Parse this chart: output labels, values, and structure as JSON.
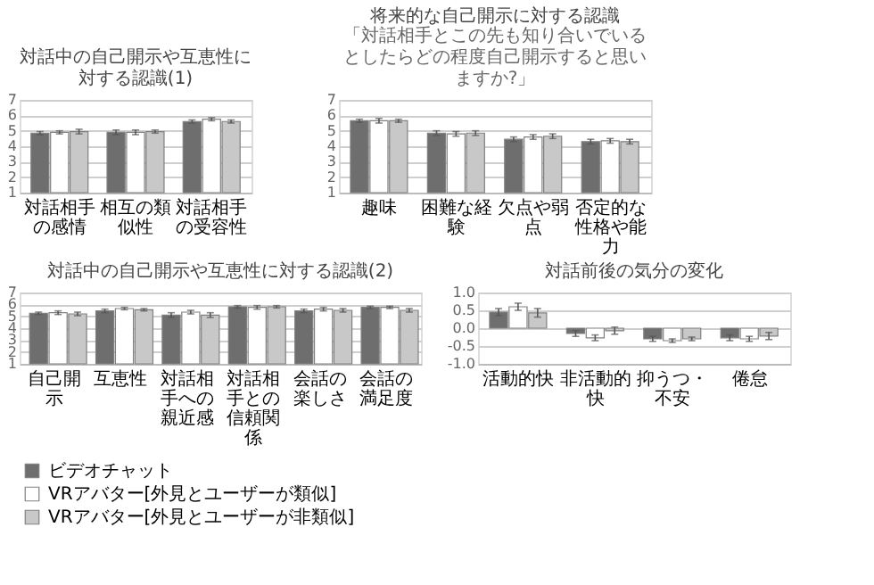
{
  "chart_data": [
    {
      "type": "bar",
      "title": "対話中の自己開示や互恵性に対する認識(1)",
      "categories": [
        "対話相手の感情",
        "相互の類似性",
        "対話相手の受容性"
      ],
      "series": [
        {
          "name": "ビデオチャット",
          "color": "#6e6e6e",
          "values": [
            4.85,
            4.9,
            5.6
          ],
          "errors": [
            0.1,
            0.15,
            0.1
          ]
        },
        {
          "name": "VRアバター[外見とユーザーが類似]",
          "color": "#ffffff",
          "values": [
            4.9,
            4.9,
            5.75
          ],
          "errors": [
            0.1,
            0.15,
            0.1
          ]
        },
        {
          "name": "VRアバター[外見とユーザーが非類似]",
          "color": "#c8c8c8",
          "values": [
            4.95,
            4.95,
            5.6
          ],
          "errors": [
            0.15,
            0.1,
            0.1
          ]
        }
      ],
      "ylim": [
        1,
        7
      ],
      "yticks": [
        1,
        2,
        3,
        4,
        5,
        6,
        7
      ],
      "grid": "y",
      "legend": "bottom"
    },
    {
      "type": "bar",
      "title": "将来的な自己開示に対する認識",
      "subtitle": "「対話相手とこの先も知り合いでいるとしたらどの程度自己開示すると思いますか?」",
      "categories": [
        "趣味",
        "困難な経験",
        "欠点や弱点",
        "否定的な性格や能力"
      ],
      "series": [
        {
          "name": "ビデオチャット",
          "color": "#6e6e6e",
          "values": [
            5.65,
            4.85,
            4.45,
            4.3
          ],
          "errors": [
            0.1,
            0.15,
            0.15,
            0.15
          ]
        },
        {
          "name": "VRアバター[外見とユーザーが類似]",
          "color": "#ffffff",
          "values": [
            5.65,
            4.8,
            4.6,
            4.35
          ],
          "errors": [
            0.15,
            0.15,
            0.15,
            0.15
          ]
        },
        {
          "name": "VRアバター[外見とユーザーが非類似]",
          "color": "#c8c8c8",
          "values": [
            5.65,
            4.85,
            4.65,
            4.3
          ],
          "errors": [
            0.1,
            0.15,
            0.15,
            0.15
          ]
        }
      ],
      "ylim": [
        1,
        7
      ],
      "yticks": [
        1,
        2,
        3,
        4,
        5,
        6,
        7
      ],
      "grid": "y",
      "legend": "bottom"
    },
    {
      "type": "bar",
      "title": "対話中の自己開示や互恵性に対する認識(2)",
      "categories": [
        "自己開示",
        "互恵性",
        "対話相手への親近感",
        "対話相手との信頼関係",
        "会話の楽しさ",
        "会話の満足度"
      ],
      "series": [
        {
          "name": "ビデオチャット",
          "color": "#6e6e6e",
          "values": [
            5.25,
            5.45,
            5.1,
            5.8,
            5.45,
            5.75
          ],
          "errors": [
            0.1,
            0.15,
            0.2,
            0.1,
            0.15,
            0.1
          ]
        },
        {
          "name": "VRアバター[外見とユーザーが類似]",
          "color": "#ffffff",
          "values": [
            5.3,
            5.65,
            5.35,
            5.75,
            5.6,
            5.75
          ],
          "errors": [
            0.15,
            0.1,
            0.15,
            0.15,
            0.15,
            0.1
          ]
        },
        {
          "name": "VRアバター[外見とユーザーが非類似]",
          "color": "#c8c8c8",
          "values": [
            5.2,
            5.55,
            5.1,
            5.8,
            5.5,
            5.5
          ],
          "errors": [
            0.15,
            0.1,
            0.2,
            0.1,
            0.15,
            0.15
          ]
        }
      ],
      "ylim": [
        1,
        7
      ],
      "yticks": [
        1,
        2,
        3,
        4,
        5,
        6,
        7
      ],
      "grid": "y",
      "legend": "bottom"
    },
    {
      "type": "bar",
      "title": "対話前後の気分の変化",
      "categories": [
        "活動的快",
        "非活動的快",
        "抑うつ・不安",
        "倦怠"
      ],
      "series": [
        {
          "name": "ビデオチャット",
          "color": "#6e6e6e",
          "values": [
            0.45,
            -0.15,
            -0.3,
            -0.27
          ],
          "errors": [
            0.1,
            0.08,
            0.07,
            0.08
          ]
        },
        {
          "name": "VRアバター[外見とユーザーが類似]",
          "color": "#ffffff",
          "values": [
            0.6,
            -0.27,
            -0.35,
            -0.3
          ],
          "errors": [
            0.1,
            0.08,
            0.05,
            0.07
          ]
        },
        {
          "name": "VRアバター[外見とユーザーが非類似]",
          "color": "#c8c8c8",
          "values": [
            0.43,
            -0.07,
            -0.3,
            -0.22
          ],
          "errors": [
            0.12,
            0.1,
            0.05,
            0.1
          ]
        }
      ],
      "ylim": [
        -1,
        1
      ],
      "yticks": [
        {
          "value": -1,
          "label": "-1.0"
        },
        {
          "value": -0.5,
          "label": "-0.5"
        },
        {
          "value": 0,
          "label": "0.0"
        },
        {
          "value": 0.5,
          "label": "0.5"
        },
        {
          "value": 1,
          "label": "1.0"
        }
      ],
      "grid": "y",
      "legend": "bottom"
    }
  ]
}
